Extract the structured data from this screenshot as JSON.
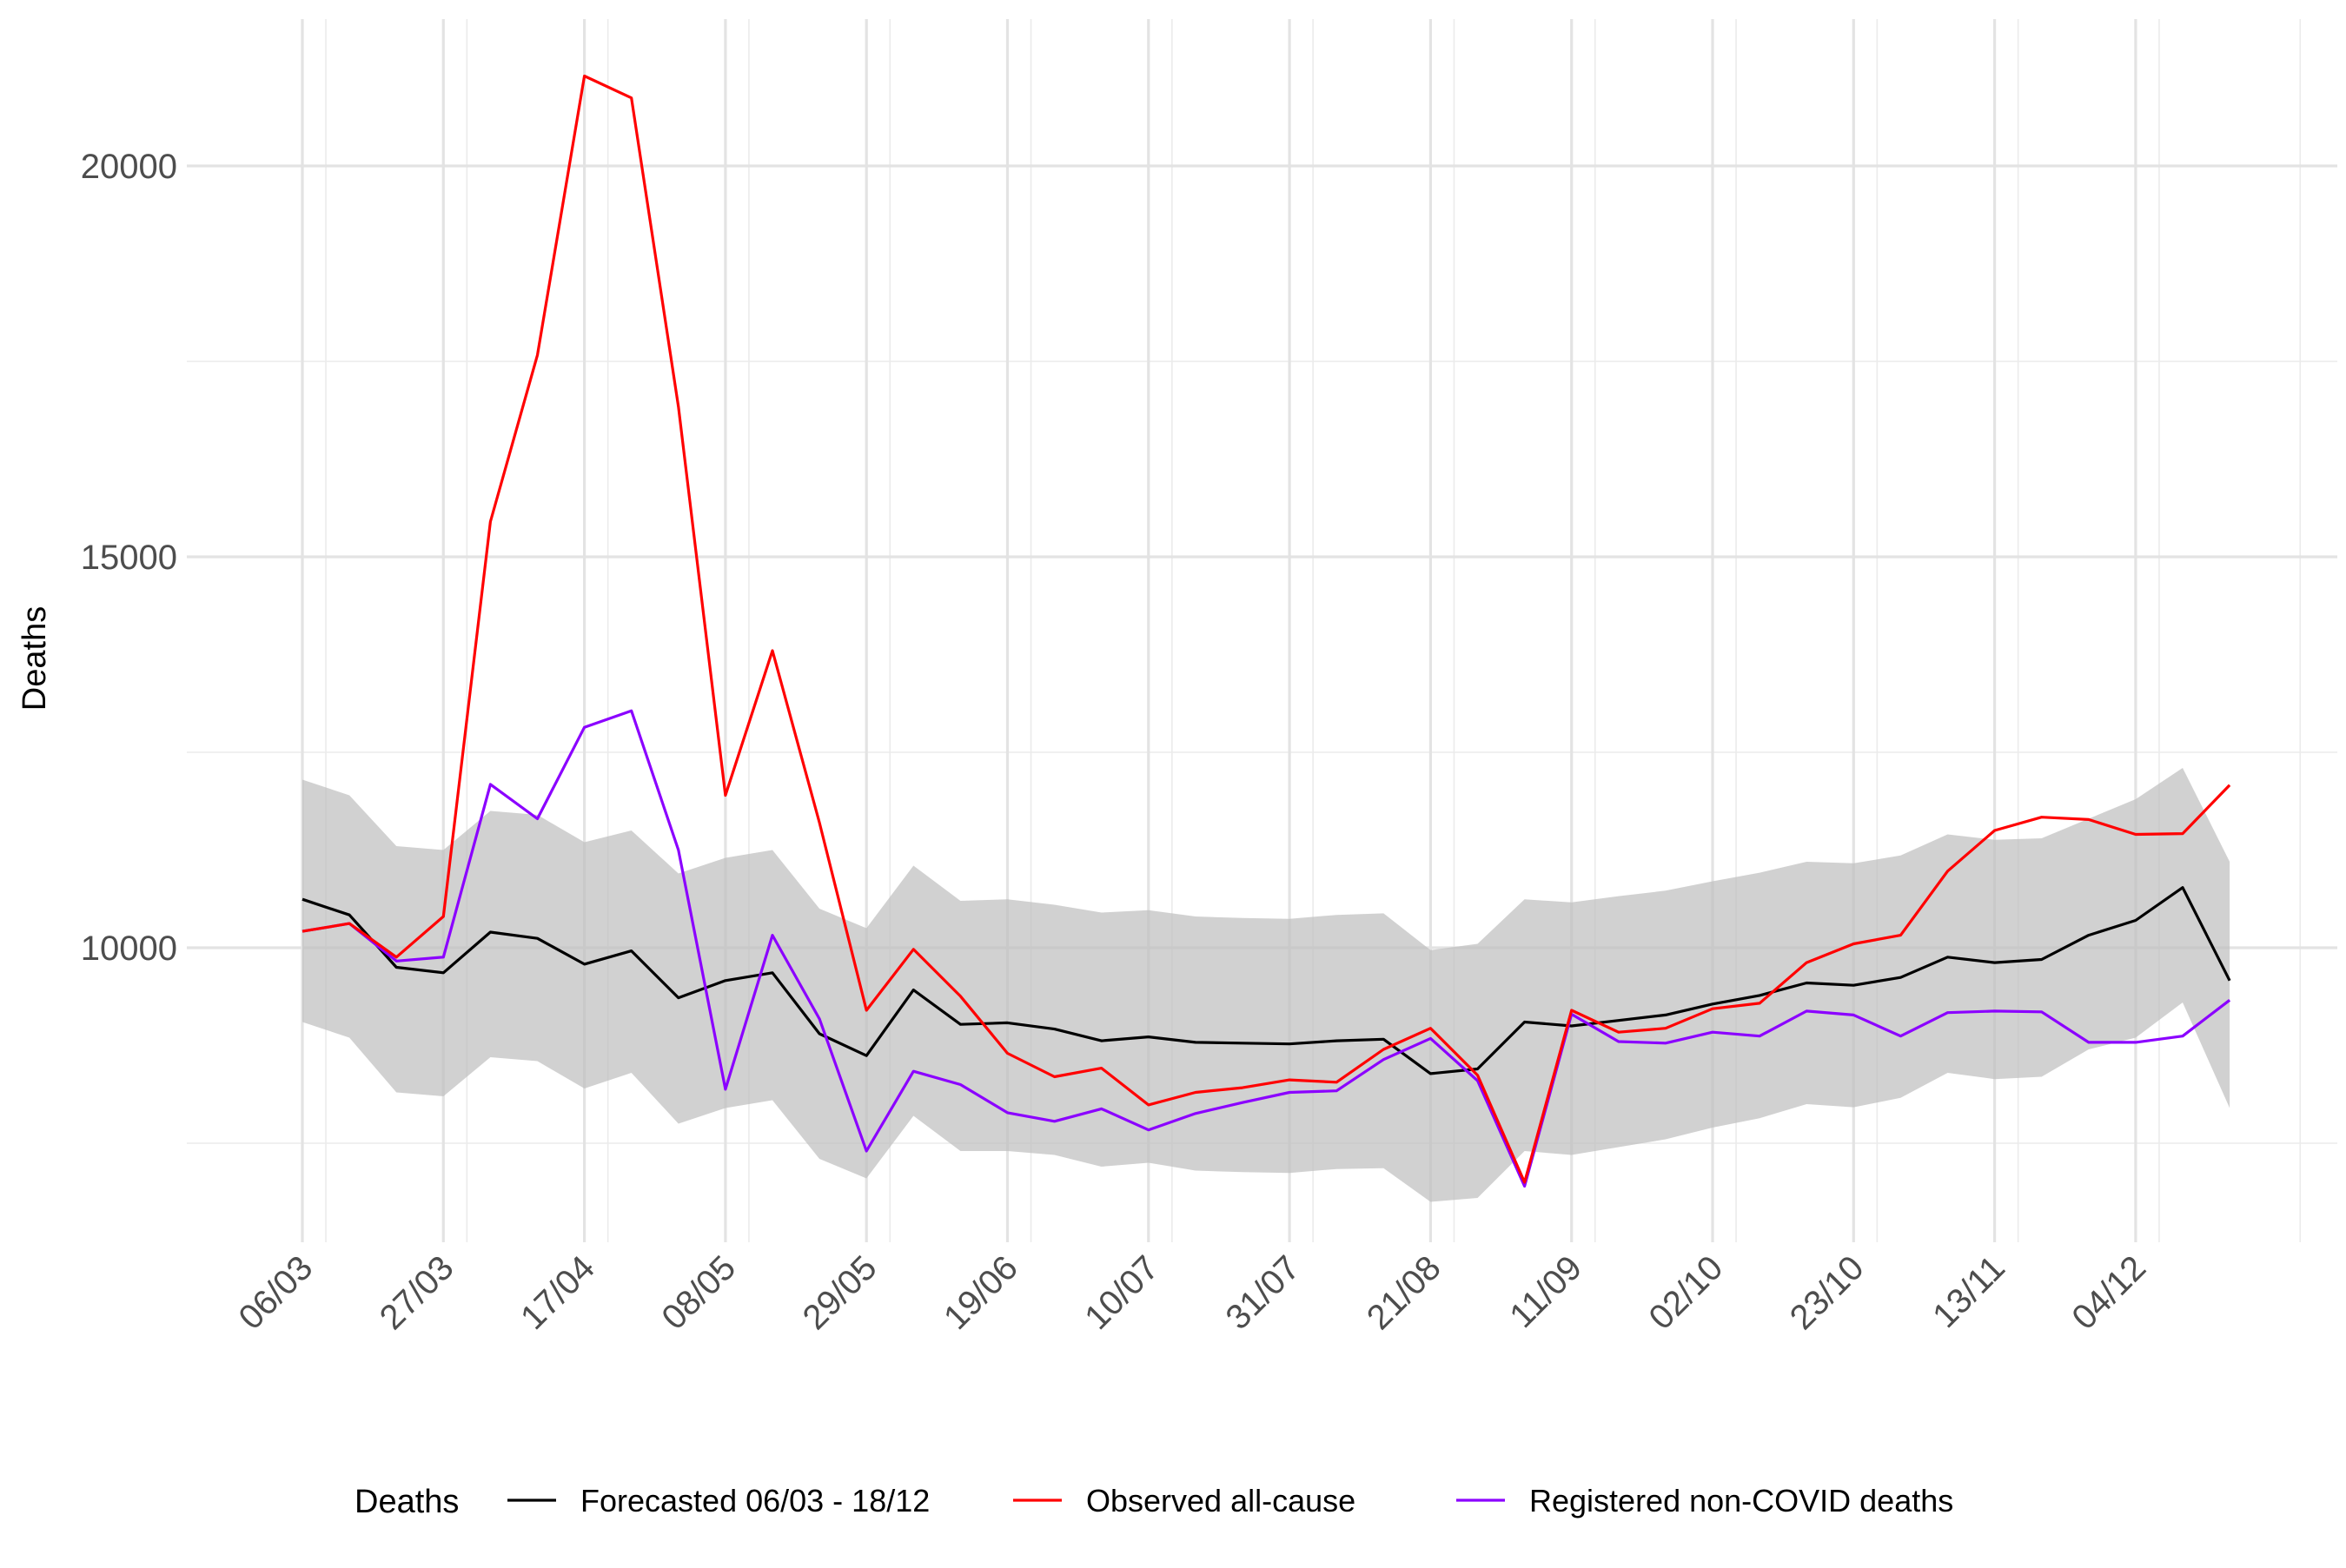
{
  "chart_data": {
    "type": "line",
    "ylabel": "Deaths",
    "xlabel": "",
    "ylim": [
      6400,
      22000
    ],
    "y_major_ticks": [
      10000,
      15000,
      20000
    ],
    "y_minor_ticks": [
      7500,
      12500,
      17500
    ],
    "x_start": "06/03",
    "x_interval_days": 7,
    "x_tick_labels": [
      "06/03",
      "27/03",
      "17/04",
      "08/05",
      "29/05",
      "19/06",
      "10/07",
      "31/07",
      "21/08",
      "11/09",
      "02/10",
      "23/10",
      "13/11",
      "04/12"
    ],
    "x": [
      "06/03",
      "13/03",
      "20/03",
      "27/03",
      "03/04",
      "10/04",
      "17/04",
      "24/04",
      "01/05",
      "08/05",
      "15/05",
      "22/05",
      "29/05",
      "05/06",
      "12/06",
      "19/06",
      "26/06",
      "03/07",
      "10/07",
      "17/07",
      "24/07",
      "31/07",
      "07/08",
      "14/08",
      "21/08",
      "28/08",
      "04/09",
      "11/09",
      "18/09",
      "25/09",
      "02/10",
      "09/10",
      "16/10",
      "23/10",
      "30/10",
      "06/11",
      "13/11",
      "20/11",
      "27/11",
      "04/12",
      "11/12",
      "18/12"
    ],
    "band": {
      "lower": [
        9050,
        8850,
        8150,
        8100,
        8600,
        8550,
        8200,
        8400,
        7750,
        7950,
        8050,
        7300,
        7050,
        7850,
        7400,
        7400,
        7350,
        7200,
        7250,
        7150,
        7130,
        7120,
        7170,
        7180,
        6750,
        6800,
        7400,
        7350,
        7450,
        7550,
        7700,
        7820,
        8000,
        7960,
        8080,
        8400,
        8320,
        8350,
        8700,
        8850,
        9300,
        7950
      ],
      "upper": [
        12150,
        11950,
        11300,
        11250,
        11750,
        11700,
        11350,
        11500,
        10950,
        11150,
        11250,
        10500,
        10250,
        11050,
        10600,
        10620,
        10550,
        10450,
        10480,
        10400,
        10380,
        10370,
        10420,
        10440,
        9970,
        10050,
        10620,
        10580,
        10660,
        10730,
        10850,
        10960,
        11100,
        11080,
        11180,
        11450,
        11380,
        11400,
        11650,
        11900,
        12300,
        11100
      ]
    },
    "series": [
      {
        "name": "Forecasted 06/03 - 18/12",
        "color": "#000000",
        "values": [
          10620,
          10420,
          9750,
          9680,
          10200,
          10120,
          9790,
          9960,
          9360,
          9580,
          9680,
          8900,
          8620,
          9460,
          9020,
          9040,
          8960,
          8810,
          8860,
          8790,
          8780,
          8770,
          8810,
          8830,
          8390,
          8450,
          9050,
          9000,
          9070,
          9140,
          9280,
          9390,
          9550,
          9520,
          9620,
          9880,
          9810,
          9850,
          10160,
          10350,
          10770,
          9580
        ]
      },
      {
        "name": "Observed all-cause",
        "color": "#ff0000",
        "values": [
          10210,
          10310,
          9880,
          10400,
          15450,
          17580,
          21150,
          20870,
          16920,
          11950,
          13800,
          11600,
          9200,
          9980,
          9380,
          8650,
          8350,
          8460,
          7990,
          8150,
          8210,
          8310,
          8280,
          8700,
          8970,
          8370,
          7000,
          9200,
          8920,
          8970,
          9220,
          9290,
          9810,
          10050,
          10160,
          10980,
          11500,
          11670,
          11640,
          11450,
          11460,
          12080
        ]
      },
      {
        "name": "Registered non-COVID deaths",
        "color": "#8b00ff",
        "values": [
          10210,
          10310,
          9830,
          9880,
          12090,
          11650,
          12820,
          13030,
          11250,
          8190,
          10160,
          9090,
          7400,
          8420,
          8250,
          7890,
          7780,
          7940,
          7670,
          7880,
          8020,
          8150,
          8170,
          8570,
          8840,
          8300,
          6950,
          9150,
          8800,
          8780,
          8920,
          8870,
          9190,
          9140,
          8870,
          9170,
          9190,
          9180,
          8790,
          8790,
          8870,
          9330
        ]
      }
    ],
    "legend": {
      "title": "Deaths",
      "position": "bottom"
    },
    "grid": true
  }
}
